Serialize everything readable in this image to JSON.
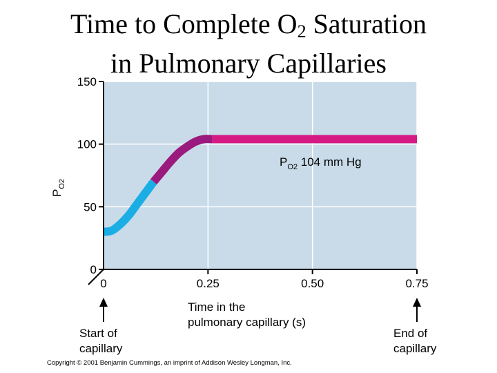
{
  "title": {
    "line1_pre": "Time to Complete O",
    "line1_sub": "2",
    "line1_post": " Saturation",
    "line2": "in Pulmonary Capillaries"
  },
  "chart_data": {
    "type": "line",
    "xlabel_line1": "Time in the",
    "xlabel_line2": "pulmonary capillary (s)",
    "ylabel_main": "P",
    "ylabel_sub": "O2",
    "xlim": [
      0,
      0.75
    ],
    "ylim": [
      0,
      150
    ],
    "x_ticks": [
      "0",
      "0.25",
      "0.50",
      "0.75"
    ],
    "x_tick_values": [
      0,
      0.25,
      0.5,
      0.75
    ],
    "y_ticks": [
      "0",
      "50",
      "100",
      "150"
    ],
    "y_tick_values": [
      0,
      50,
      100,
      150
    ],
    "grid": true,
    "series": [
      {
        "x": [
          0,
          0.02,
          0.04,
          0.06,
          0.08,
          0.1,
          0.12,
          0.14,
          0.16,
          0.18,
          0.2,
          0.22,
          0.24,
          0.26,
          0.28,
          0.3,
          0.4,
          0.5,
          0.6,
          0.75
        ],
        "y": [
          30,
          31,
          36,
          43,
          52,
          61,
          70,
          78,
          86,
          93,
          98,
          102,
          104,
          104,
          104,
          104,
          104,
          104,
          104,
          104
        ],
        "segment_colors": [
          "#1aaee5",
          "#9a1a7d",
          "#d61a84"
        ],
        "segment_breaks": [
          0.12,
          0.26
        ]
      }
    ],
    "annotation_main": "P",
    "annotation_sub": "O2",
    "annotation_value": " 104 mm Hg",
    "start_label_line1": "Start of",
    "start_label_line2": "capillary",
    "end_label_line1": "End of",
    "end_label_line2": "capillary"
  },
  "colors": {
    "plot_bg": "#c9dbe8",
    "grid": "#ffffff",
    "axis": "#000000"
  },
  "copyright": "Copyright © 2001 Benjamin Cummings, an imprint of Addison Wesley Longman, Inc."
}
